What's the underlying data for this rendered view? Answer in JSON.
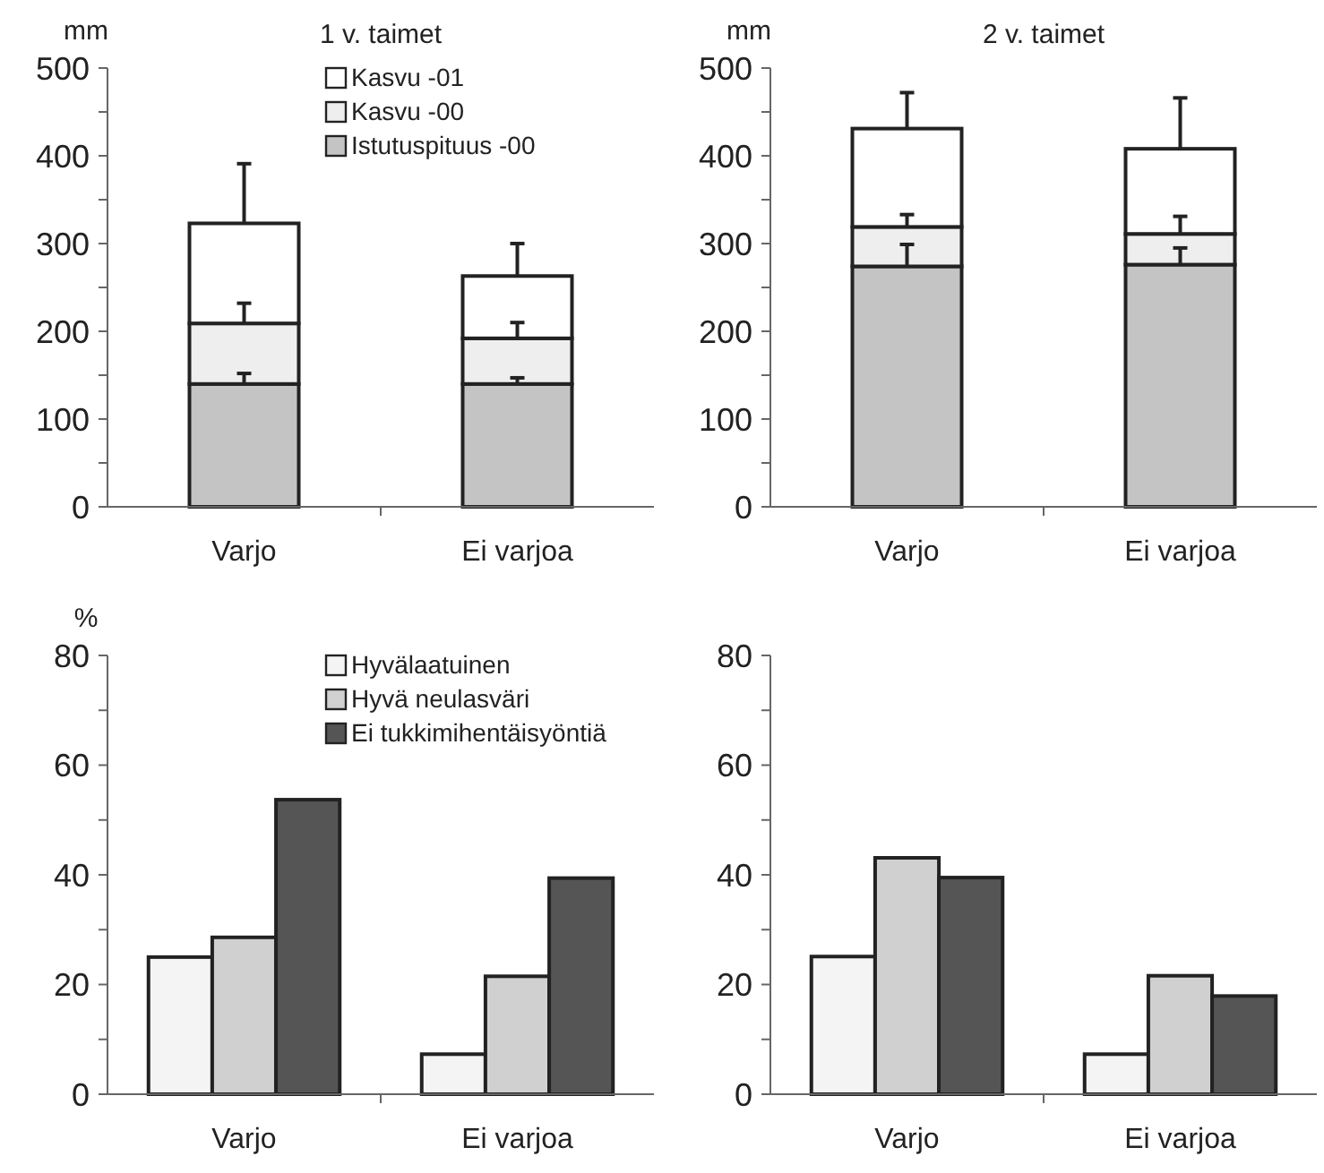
{
  "chart_data": [
    {
      "type": "bar",
      "title": "1 v. taimet",
      "ylabel": "mm",
      "categories": [
        "Varjo",
        "Ei varjoa"
      ],
      "stacked": true,
      "legend": "top right",
      "series": [
        {
          "name": "Istutuspituus -00",
          "color": "#c4c4c4",
          "values": [
            140,
            140
          ],
          "errors": [
            [
              140,
              152
            ],
            [
              140,
              147
            ]
          ]
        },
        {
          "name": "Kasvu -00",
          "color": "#eeeeee",
          "values": [
            69,
            52
          ],
          "errors": [
            [
              209,
              232
            ],
            [
              192,
              210
            ]
          ]
        },
        {
          "name": "Kasvu -01",
          "color": "#ffffff",
          "values": [
            114,
            71
          ],
          "errors": [
            [
              323,
              391
            ],
            [
              263,
              300
            ]
          ]
        }
      ],
      "ylim": [
        0,
        500
      ],
      "yticks": [
        0,
        {
          "value": 50,
          "label": null
        },
        100,
        {
          "value": 150,
          "label": null
        },
        200,
        {
          "value": 250,
          "label": null
        },
        300,
        {
          "value": 350,
          "label": null
        },
        400,
        {
          "value": 450,
          "label": null
        },
        500
      ]
    },
    {
      "type": "bar",
      "title": "2 v. taimet",
      "ylabel": "mm",
      "categories": [
        "Varjo",
        "Ei varjoa"
      ],
      "stacked": true,
      "legend": false,
      "series": [
        {
          "color": "#c4c4c4",
          "values": [
            274,
            276
          ],
          "errors": [
            [
              274,
              299
            ],
            [
              276,
              295
            ]
          ]
        },
        {
          "color": "#eeeeee",
          "values": [
            45,
            35
          ],
          "errors": [
            [
              319,
              333
            ],
            [
              311,
              331
            ]
          ]
        },
        {
          "color": "#ffffff",
          "values": [
            112,
            97
          ],
          "errors": [
            [
              431,
              472
            ],
            [
              408,
              466
            ]
          ]
        }
      ],
      "ylim": [
        0,
        500
      ],
      "yticks": [
        0,
        {
          "value": 50,
          "label": null
        },
        100,
        {
          "value": 150,
          "label": null
        },
        200,
        {
          "value": 250,
          "label": null
        },
        300,
        {
          "value": 350,
          "label": null
        },
        400,
        {
          "value": 450,
          "label": null
        },
        500
      ]
    },
    {
      "type": "bar",
      "ylabel": "%",
      "categories": [
        "Varjo",
        "Ei varjoa"
      ],
      "legend": "top right",
      "series": [
        {
          "name": "Hyvälaatuinen",
          "color": "#f4f4f4",
          "values": [
            25.0,
            7.3
          ]
        },
        {
          "name": "Hyvä neulasväri",
          "color": "#d0d0d0",
          "values": [
            28.6,
            21.5
          ]
        },
        {
          "name": "Ei tukkimihentäisyöntiä",
          "color": "#555555",
          "values": [
            53.7,
            39.4
          ]
        }
      ],
      "ylim": [
        0,
        80
      ],
      "yticks": [
        0,
        {
          "value": 10,
          "label": null
        },
        20,
        {
          "value": 30,
          "label": null
        },
        40,
        {
          "value": 50,
          "label": null
        },
        60,
        {
          "value": 70,
          "label": null
        },
        80
      ]
    },
    {
      "type": "bar",
      "categories": [
        "Varjo",
        "Ei varjoa"
      ],
      "legend": false,
      "series": [
        {
          "color": "#f4f4f4",
          "values": [
            25.1,
            7.3
          ]
        },
        {
          "color": "#d0d0d0",
          "values": [
            43.1,
            21.6
          ]
        },
        {
          "color": "#555555",
          "values": [
            39.5,
            17.9
          ]
        }
      ],
      "ylim": [
        0,
        80
      ],
      "yticks": [
        0,
        {
          "value": 10,
          "label": null
        },
        20,
        {
          "value": 30,
          "label": null
        },
        40,
        {
          "value": 50,
          "label": null
        },
        60,
        {
          "value": 70,
          "label": null
        },
        80
      ]
    }
  ]
}
